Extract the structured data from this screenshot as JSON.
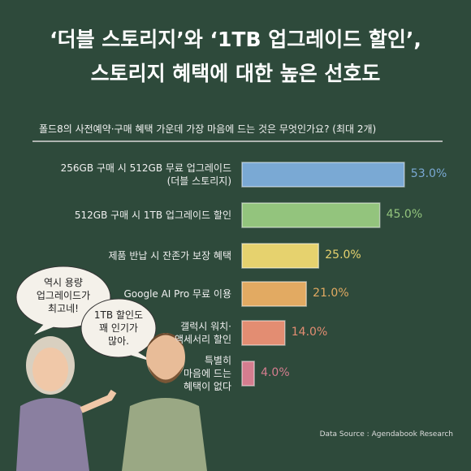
{
  "chart_data": {
    "type": "hbar",
    "title": "‘더블 스토리지’와 ‘1TB 업그레이드 할인’,\n스토리지 혜택에 대한 높은 선호도",
    "subtitle": "폴드8의 사전예약·구매 혜택 가운데 가장 마음에 드는 것은 무엇인가요? (최대 2개)",
    "categories": [
      "256GB 구매 시 512GB 무료 업그레이드\n(더블 스토리지)",
      "512GB 구매 시 1TB 업그레이드 할인",
      "제품 반납 시 잔존가 보장 혜택",
      "Google AI Pro 무료 이용",
      "갤럭시 워치·\n액세서리 할인",
      "특별히\n마음에 드는\n혜택이 없다"
    ],
    "values": [
      53,
      45,
      25,
      21,
      14,
      4
    ],
    "value_labels": [
      "53.0%",
      "45.0%",
      "25.0%",
      "21.0%",
      "14.0%",
      "4.0%"
    ],
    "colors": [
      "#7aa9d4",
      "#93c47d",
      "#e6d26e",
      "#e2aa62",
      "#e38d72",
      "#d57d8f"
    ],
    "annotations": [
      "역시 용량\n업그레이드가\n최고네!",
      "1TB 할인도\n꽤 인기가\n많아."
    ],
    "source": "Data Source : Agendabook Research"
  }
}
